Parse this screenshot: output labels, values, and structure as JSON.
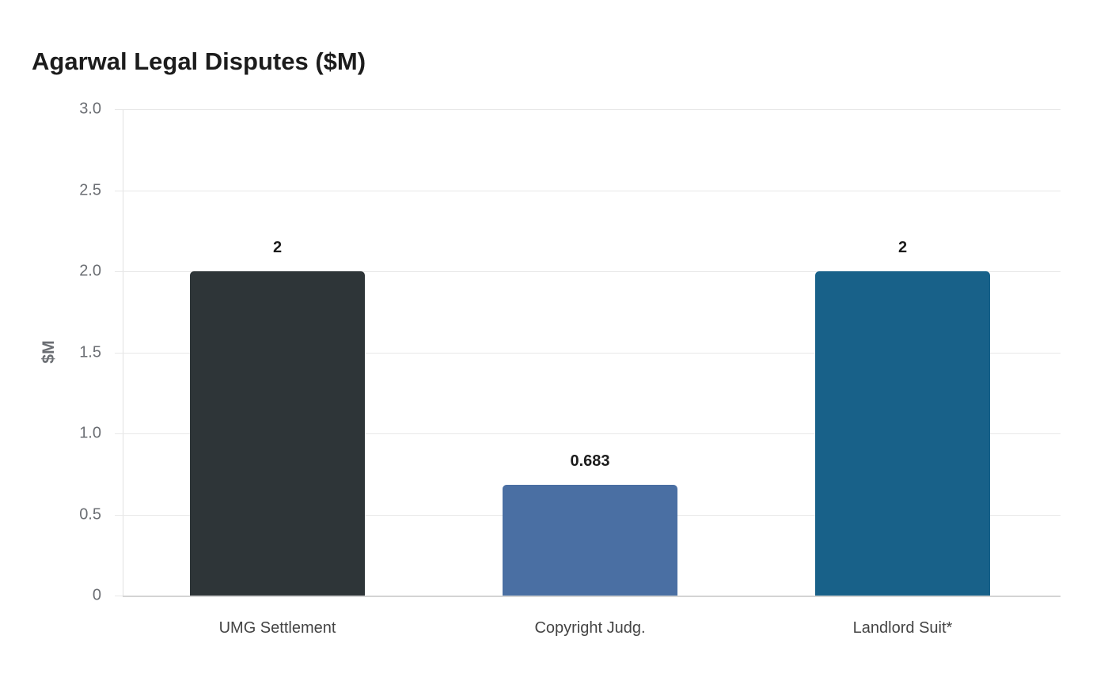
{
  "chart_data": {
    "type": "bar",
    "title": "Agarwal Legal Disputes ($M)",
    "xlabel": "",
    "ylabel": "$M",
    "categories": [
      "UMG Settlement",
      "Copyright Judg.",
      "Landlord Suit*"
    ],
    "values": [
      2,
      0.683,
      2
    ],
    "value_labels": [
      "2",
      "0.683",
      "2"
    ],
    "colors": [
      "#2e3538",
      "#4a6fa3",
      "#186189"
    ],
    "ylim": [
      0,
      3.0
    ],
    "yticks": [
      0,
      0.5,
      1.0,
      1.5,
      2.0,
      2.5,
      3.0
    ],
    "ytick_labels": [
      "0",
      "0.5",
      "1.0",
      "1.5",
      "2.0",
      "2.5",
      "3.0"
    ],
    "grid": true,
    "legend": null
  }
}
